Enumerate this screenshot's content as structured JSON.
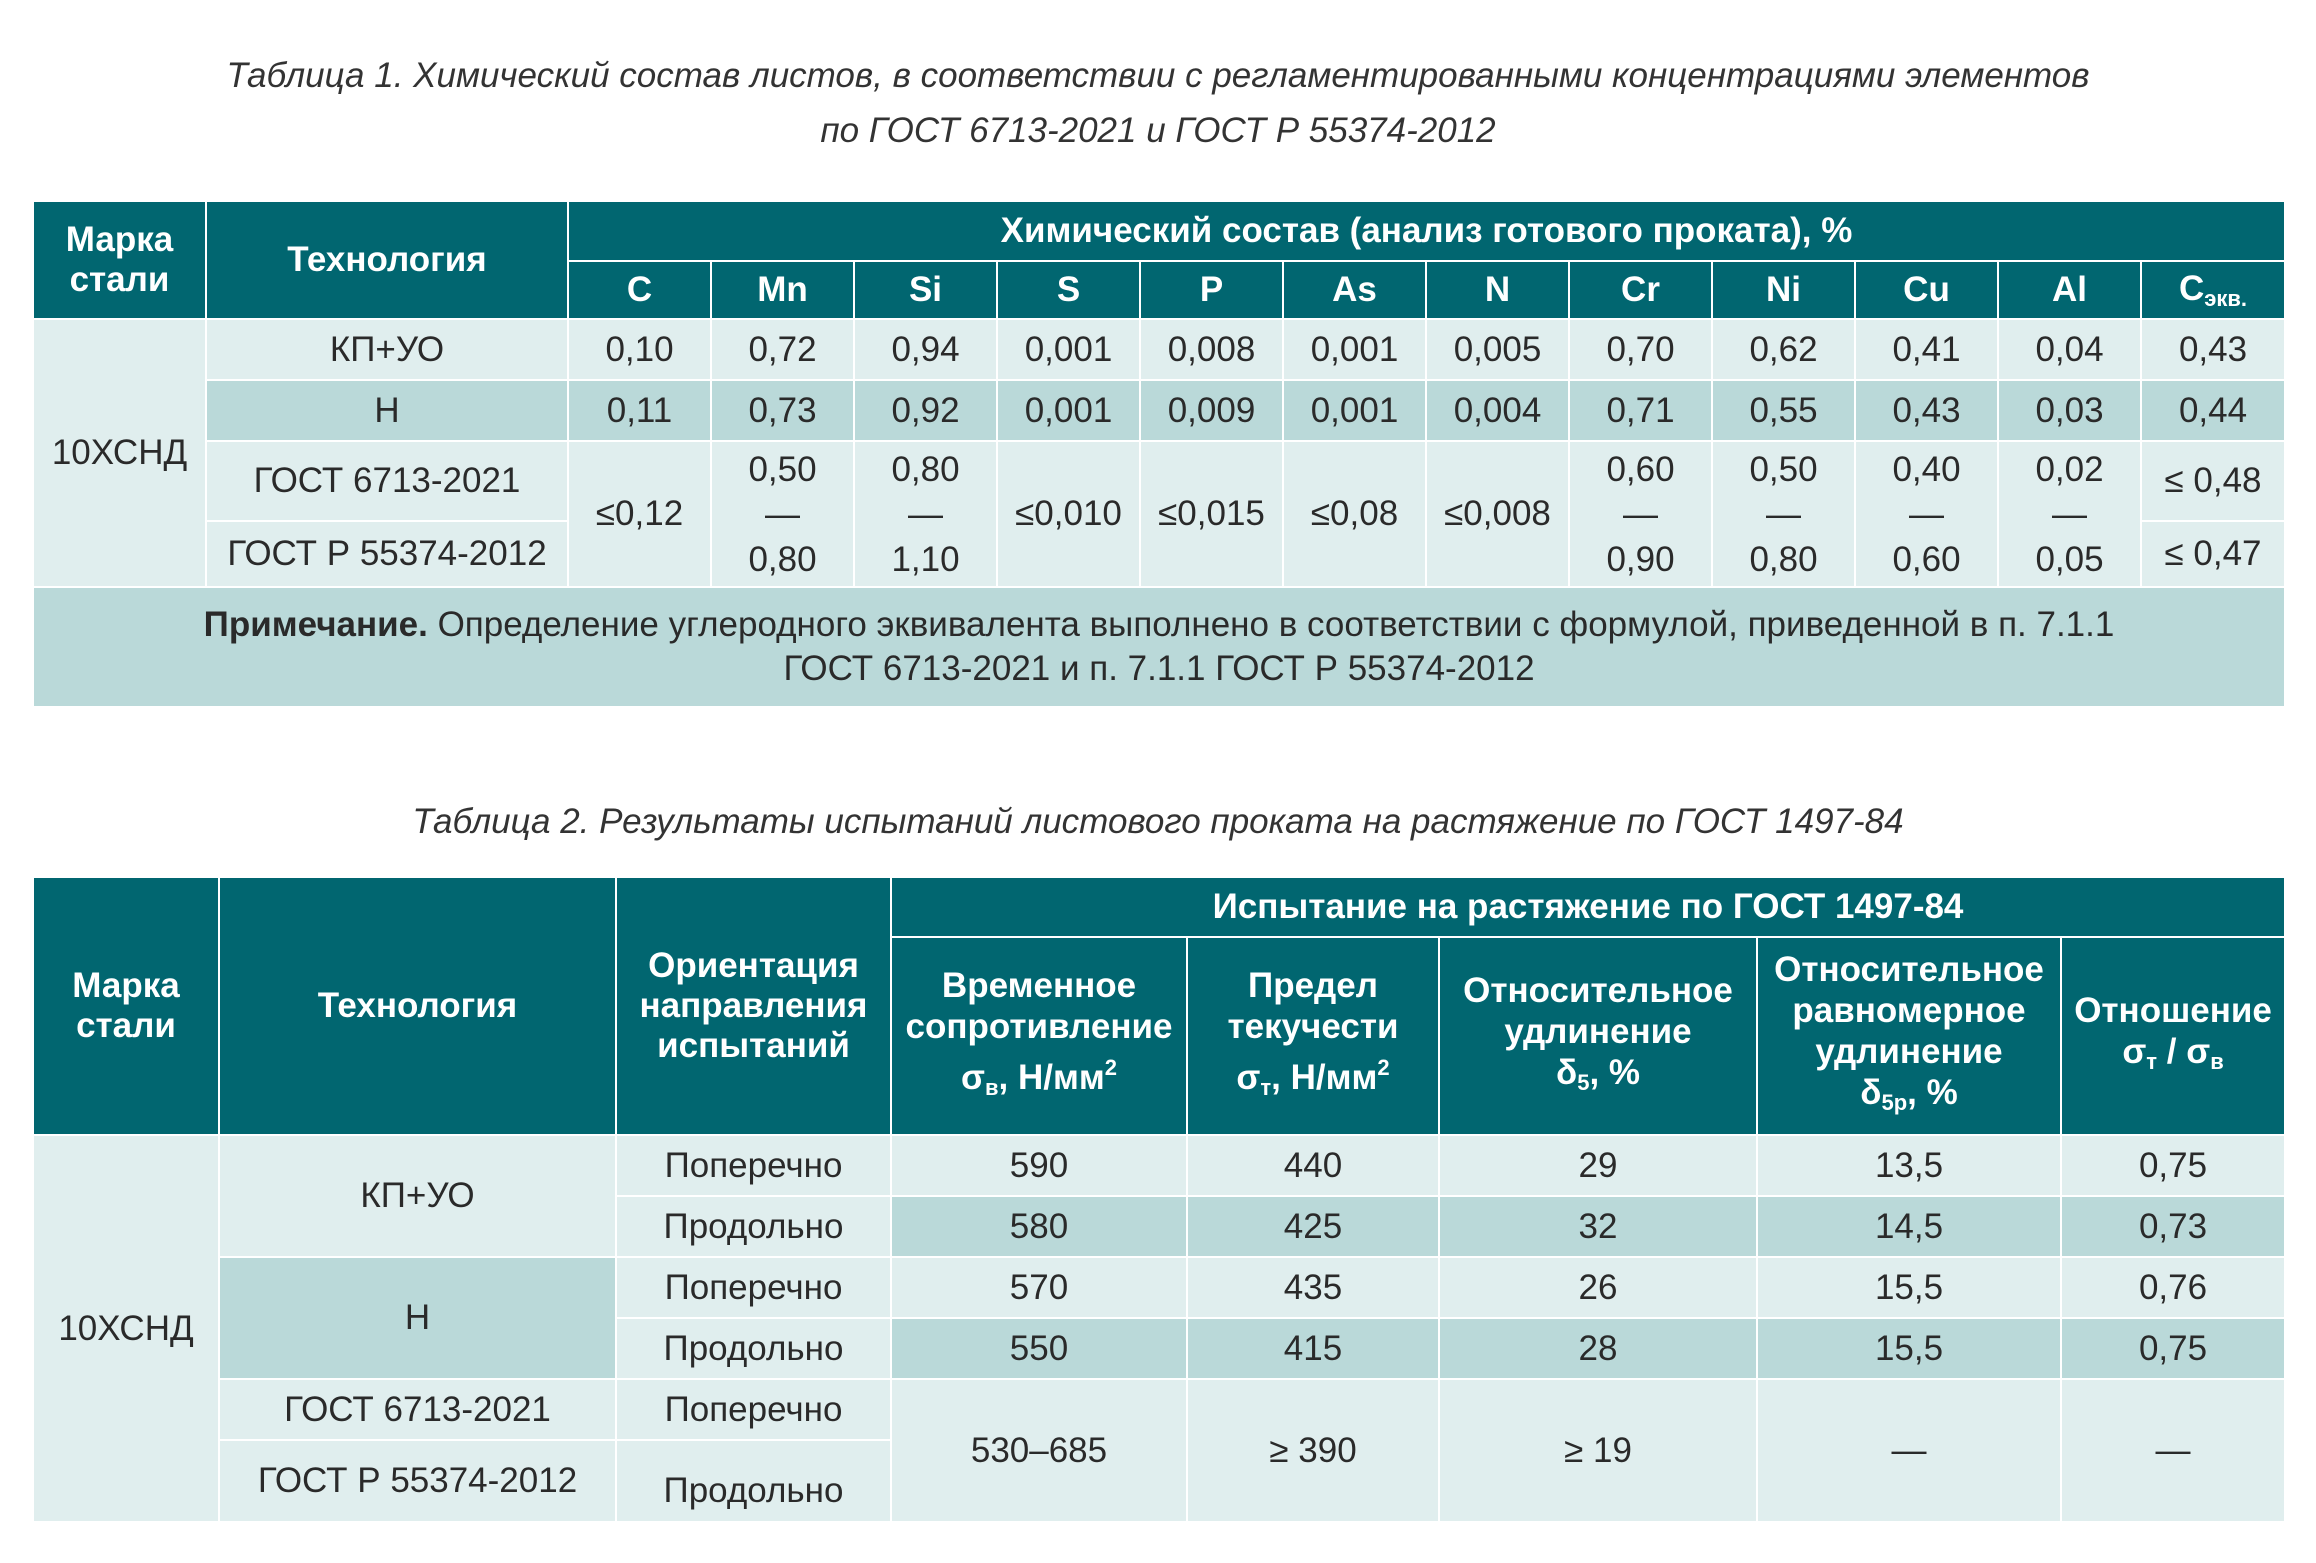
{
  "table1": {
    "caption_line1": "Таблица 1.  Химический состав листов, в соответствии с регламентированными концентрациями элементов",
    "caption_line2": "по ГОСТ 6713-2021 и ГОСТ Р 55374-2012",
    "header": {
      "grade": "Марка стали",
      "technology": "Технология",
      "composition": "Химический состав (анализ готового проката), %",
      "elements": [
        "C",
        "Mn",
        "Si",
        "S",
        "P",
        "As",
        "N",
        "Cr",
        "Ni",
        "Cu",
        "Al"
      ],
      "ceq_main": "C",
      "ceq_sub": "экв."
    },
    "grade": "10ХСНД",
    "rows": [
      {
        "tech": "КП+УО",
        "values": [
          "0,10",
          "0,72",
          "0,94",
          "0,001",
          "0,008",
          "0,001",
          "0,005",
          "0,70",
          "0,62",
          "0,41",
          "0,04",
          "0,43"
        ]
      },
      {
        "tech": "Н",
        "values": [
          "0,11",
          "0,73",
          "0,92",
          "0,001",
          "0,009",
          "0,001",
          "0,004",
          "0,71",
          "0,55",
          "0,43",
          "0,03",
          "0,44"
        ]
      }
    ],
    "gost": {
      "tech1": "ГОСТ 6713-2021",
      "tech2": "ГОСТ Р 55374-2012",
      "c": "≤0,12",
      "mn": [
        "0,50",
        "—",
        "0,80"
      ],
      "si": [
        "0,80",
        "—",
        "1,10"
      ],
      "s": "≤0,010",
      "p": "≤0,015",
      "as": "≤0,08",
      "n": "≤0,008",
      "cr": [
        "0,60",
        "—",
        "0,90"
      ],
      "ni": [
        "0,50",
        "—",
        "0,80"
      ],
      "cu": [
        "0,40",
        "—",
        "0,60"
      ],
      "al": [
        "0,02",
        "—",
        "0,05"
      ],
      "ceq1": "≤ 0,48",
      "ceq2": "≤ 0,47"
    },
    "note_bold": "Примечание.",
    "note_line1": " Определение углеродного эквивалента выполнено в соответствии с формулой, приведенной в п. 7.1.1",
    "note_line2": "ГОСТ 6713-2021 и п. 7.1.1 ГОСТ Р 55374-2012"
  },
  "table2": {
    "caption": "Таблица 2. Результаты испытаний листового проката на растяжение по ГОСТ 1497-84",
    "header": {
      "grade": "Марка стали",
      "technology": "Технология",
      "orientation": "Ориентация направления испытаний",
      "tension": "Испытание на растяжение по ГОСТ 1497-84",
      "uts_l1": "Временное",
      "uts_l2": "сопротивление",
      "uts_sym": "σ",
      "uts_sub": "в",
      "uts_unit": ", Н/мм",
      "yield_l1": "Предел",
      "yield_l2": "текучести",
      "yield_sym": "σ",
      "yield_sub": "т",
      "yield_unit": ", Н/мм",
      "sq": "2",
      "elong_l1": "Относительное",
      "elong_l2": "удлинение",
      "elong_sym": "δ",
      "elong_sub": "5",
      "elong_unit": ", %",
      "uni_l1": "Относительное",
      "uni_l2": "равномерное",
      "uni_l3": "удлинение",
      "uni_sym": "δ",
      "uni_sub": "5р",
      "uni_unit": ", %",
      "ratio_l1": "Отношение",
      "ratio_s1": "σ",
      "ratio_sub1": "т",
      "ratio_mid": " / σ",
      "ratio_sub2": "в"
    },
    "grade": "10ХСНД",
    "kp_tech": "КП+УО",
    "n_tech": "Н",
    "rows": [
      {
        "orient": "Поперечно",
        "values": [
          "590",
          "440",
          "29",
          "13,5",
          "0,75"
        ]
      },
      {
        "orient": "Продольно",
        "values": [
          "580",
          "425",
          "32",
          "14,5",
          "0,73"
        ]
      },
      {
        "orient": "Поперечно",
        "values": [
          "570",
          "435",
          "26",
          "15,5",
          "0,76"
        ]
      },
      {
        "orient": "Продольно",
        "values": [
          "550",
          "415",
          "28",
          "15,5",
          "0,75"
        ]
      }
    ],
    "gost": {
      "tech1": "ГОСТ 6713-2021",
      "tech2": "ГОСТ Р 55374-2012",
      "orient1": "Поперечно",
      "orient2": "Продольно",
      "uts": "530–685",
      "yield": "≥ 390",
      "elong": "≥ 19",
      "uni": "—",
      "ratio": "—"
    }
  }
}
